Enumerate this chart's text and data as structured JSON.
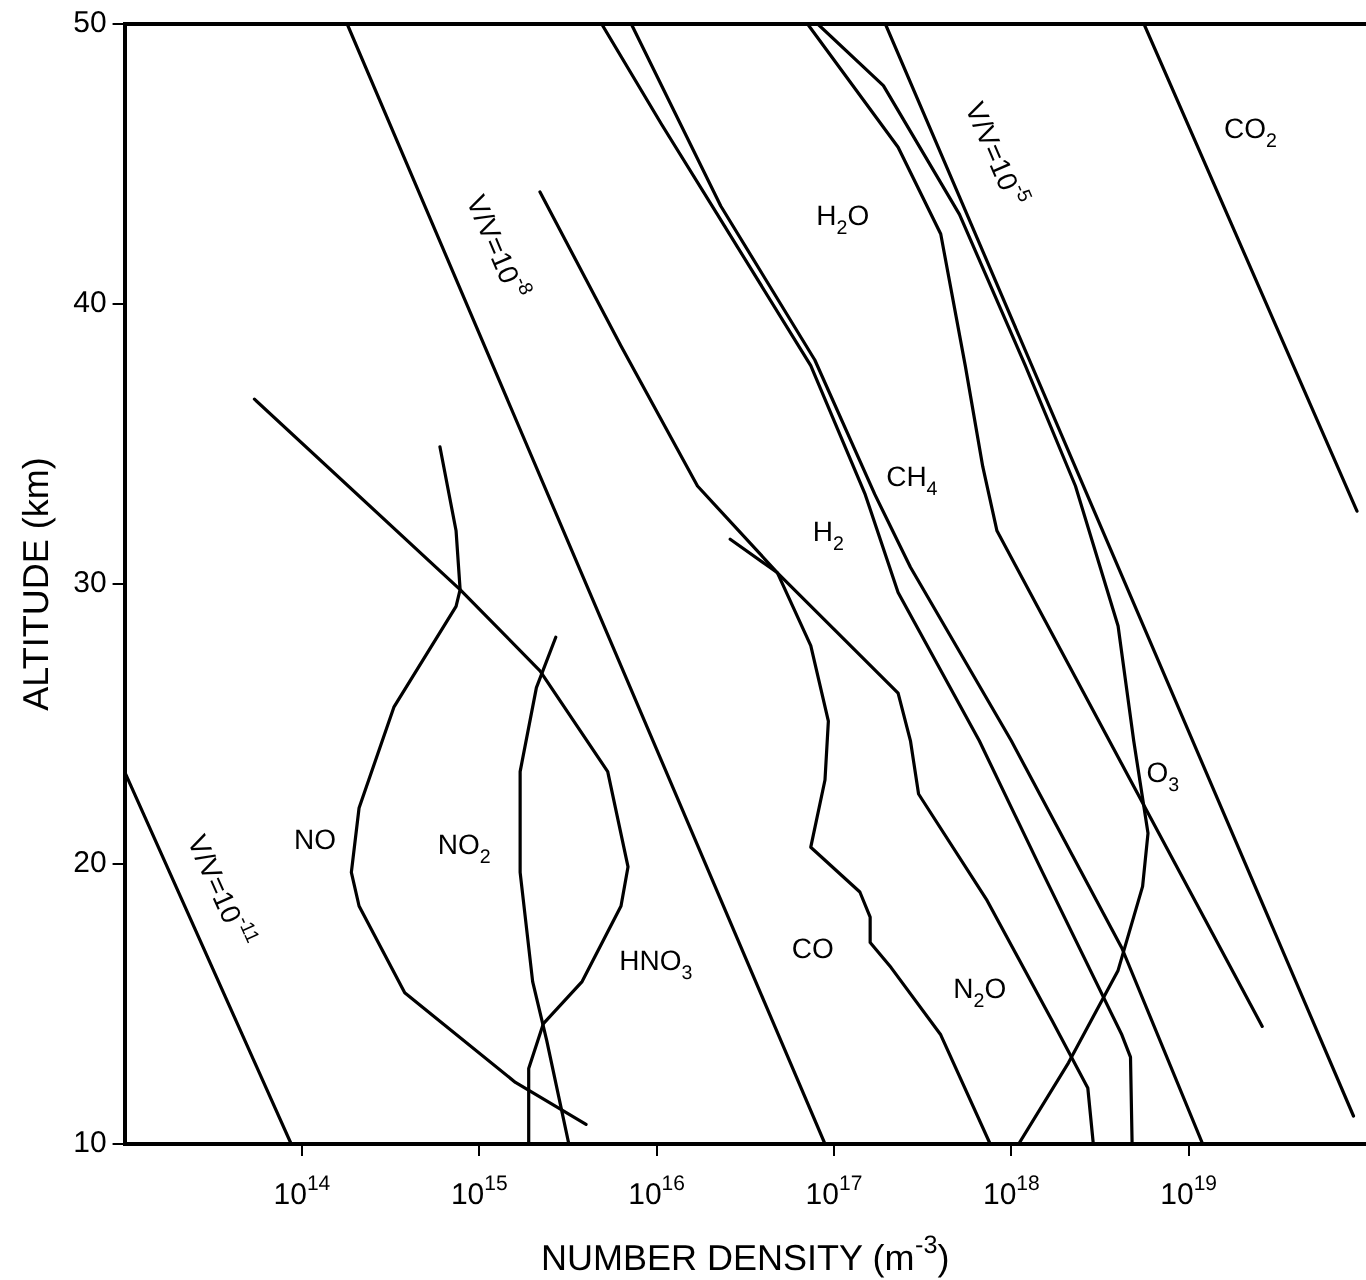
{
  "chart_data": {
    "type": "line",
    "xlabel": "NUMBER DENSITY (m$^{-3}$)",
    "ylabel": "ALTITUDE (km)",
    "log": "x",
    "grid": false,
    "legend": false,
    "marker": "none",
    "line_style": "solid",
    "xlim": [
      10000000000000.0,
      1e+20
    ],
    "ylim": [
      10,
      50
    ],
    "xticks": [
      {
        "value": 100000000000000.0,
        "label": "10$^{14}$"
      },
      {
        "value": 1000000000000000.0,
        "label": "10$^{15}$"
      },
      {
        "value": 1e+16,
        "label": "10$^{16}$"
      },
      {
        "value": 1e+17,
        "label": "10$^{17}$"
      },
      {
        "value": 1e+18,
        "label": "10$^{18}$"
      },
      {
        "value": 1e+19,
        "label": "10$^{19}$"
      }
    ],
    "yticks": [
      10,
      20,
      30,
      40,
      50
    ],
    "series": [
      {
        "name": "V/V=10$^{-11}$",
        "color": "#000000",
        "x": [
          10000000000000.0,
          87000000000000.0
        ],
        "values": [
          23.3,
          10
        ]
      },
      {
        "name": "V/V=10$^{-8}$",
        "color": "#000000",
        "x": [
          180000000000000.0,
          8.9e+16
        ],
        "values": [
          50,
          10
        ]
      },
      {
        "name": "V/V=10$^{-5}$",
        "color": "#000000",
        "x": [
          1.95e+17,
          8.5e+19
        ],
        "values": [
          50,
          11
        ]
      },
      {
        "name": "CO$_{2}$",
        "color": "#000000",
        "x": [
          5.6e+18,
          8.9e+19
        ],
        "values": [
          50,
          32.6
        ]
      },
      {
        "name": "NO",
        "color": "#000000",
        "x": [
          600000000000000.0,
          740000000000000.0,
          780000000000000.0,
          740000000000000.0,
          330000000000000.0,
          210000000000000.0,
          190000000000000.0,
          210000000000000.0,
          380000000000000.0,
          1600000000000000.0,
          4000000000000000.0
        ],
        "values": [
          34.9,
          31.9,
          29.8,
          29.2,
          25.6,
          22.0,
          19.7,
          18.5,
          15.4,
          12.2,
          10.7
        ]
      },
      {
        "name": "NO$_{2}$",
        "color": "#000000",
        "x": [
          2700000000000000.0,
          2100000000000000.0,
          1700000000000000.0,
          1700000000000000.0,
          2000000000000000.0,
          2400000000000000.0,
          3200000000000000.0
        ],
        "values": [
          28.1,
          26.3,
          23.3,
          19.7,
          15.8,
          13.7,
          10
        ]
      },
      {
        "name": "HNO$_{3}$",
        "color": "#000000",
        "x": [
          54000000000000.0,
          780000000000000.0,
          2200000000000000.0,
          5300000000000000.0,
          6900000000000000.0,
          6300000000000000.0,
          3800000000000000.0,
          2300000000000000.0,
          1900000000000000.0,
          1900000000000000.0
        ],
        "values": [
          36.6,
          29.8,
          26.9,
          23.3,
          19.9,
          18.5,
          15.8,
          14.3,
          12.7,
          10
        ]
      },
      {
        "name": "CO",
        "color": "#000000",
        "x": [
          2200000000000000.0,
          6300000000000000.0,
          1.7e+16,
          4.8e+16,
          7.4e+16,
          9.3e+16,
          8.9e+16,
          7.4e+16,
          1.4e+17,
          1.6e+17,
          1.6e+17,
          2.1e+17,
          4e+17,
          7.6e+17
        ],
        "values": [
          44.0,
          38.5,
          33.5,
          30.4,
          27.8,
          25.1,
          23.0,
          20.6,
          19.0,
          18.1,
          17.2,
          16.3,
          13.9,
          10
        ]
      },
      {
        "name": "N$_{2}$O",
        "color": "#000000",
        "x": [
          2.6e+16,
          4.8e+16,
          2.3e+17,
          2.7e+17,
          3e+17,
          7.3e+17,
          1.7e+18,
          2.7e+18,
          2.9e+18
        ],
        "values": [
          31.6,
          30.4,
          26.1,
          24.4,
          22.5,
          18.7,
          14.4,
          12.0,
          10
        ]
      },
      {
        "name": "H$_{2}$",
        "color": "#000000",
        "x": [
          4900000000000000.0,
          1.07e+16,
          2.2e+16,
          7.4e+16,
          1.5e+17,
          2.3e+17,
          6.6e+17,
          1.5e+18,
          4.2e+18,
          4.7e+18,
          4.8e+18
        ],
        "values": [
          50,
          46.4,
          43.2,
          37.8,
          33.2,
          29.7,
          24.4,
          19.7,
          13.9,
          13.1,
          10
        ]
      },
      {
        "name": "CH$_{4}$",
        "color": "#000000",
        "x": [
          7200000000000000.0,
          2.3e+16,
          7.8e+16,
          1.7e+17,
          2.7e+17,
          1e+18,
          4.2e+18,
          1.2e+19
        ],
        "values": [
          50,
          43.5,
          38.0,
          33.2,
          30.6,
          24.4,
          17.0,
          10
        ]
      },
      {
        "name": "H$_{2}$O",
        "color": "#000000",
        "x": [
          7.1e+16,
          2.3e+17,
          4e+17,
          5.5e+17,
          6.9e+17,
          8.3e+17,
          2.6e+19
        ],
        "values": [
          50,
          45.6,
          42.5,
          37.8,
          34.2,
          31.9,
          14.2
        ]
      },
      {
        "name": "O$_{3}$",
        "color": "#000000",
        "x": [
          8.1e+16,
          1.9e+17,
          5.1e+17,
          1.2e+18,
          2.3e+18,
          4e+18,
          4.9e+18,
          5.9e+18,
          5.5e+18,
          4e+18,
          2.1e+18,
          1.1e+18
        ],
        "values": [
          50,
          47.8,
          43.2,
          37.8,
          33.5,
          28.5,
          24.4,
          21.1,
          19.2,
          16.2,
          12.9,
          10
        ]
      }
    ]
  }
}
